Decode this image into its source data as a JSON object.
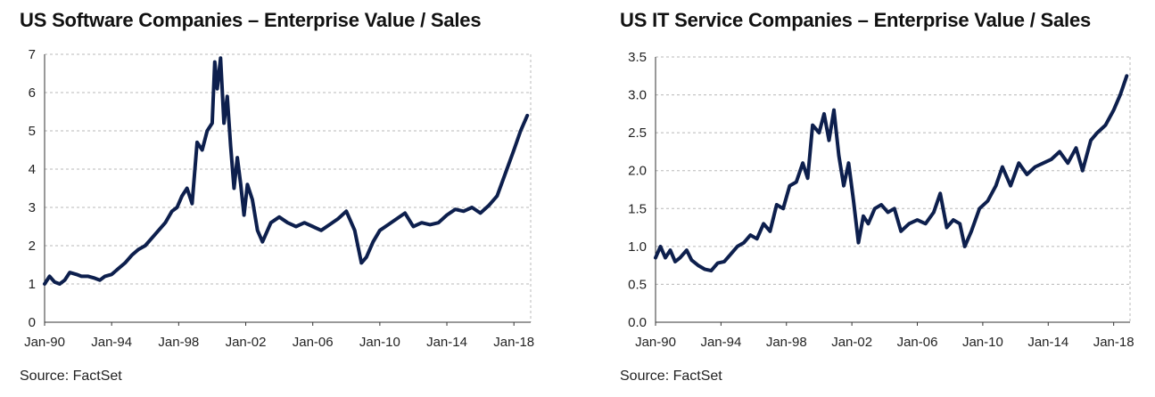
{
  "colors": {
    "line": "#0d1f4d",
    "grid": "#b8b8b8",
    "axis": "#333333"
  },
  "chart_data": [
    {
      "type": "line",
      "title": "US Software Companies – Enterprise Value / Sales",
      "source": "Source: FactSet",
      "xlabel": "",
      "ylabel": "",
      "x_ticks": [
        "Jan-90",
        "Jan-94",
        "Jan-98",
        "Jan-02",
        "Jan-06",
        "Jan-10",
        "Jan-14",
        "Jan-18"
      ],
      "y_ticks": [
        "0",
        "1",
        "2",
        "3",
        "4",
        "5",
        "6",
        "7"
      ],
      "xlim": [
        1990.0,
        2019.0
      ],
      "ylim": [
        0,
        7
      ],
      "grid": true,
      "series": [
        {
          "x": [
            1990.0,
            1990.3,
            1990.6,
            1990.9,
            1991.2,
            1991.5,
            1991.9,
            1992.2,
            1992.6,
            1993.0,
            1993.3,
            1993.6,
            1994.0,
            1994.4,
            1994.8,
            1995.2,
            1995.6,
            1996.0,
            1996.4,
            1996.8,
            1997.2,
            1997.6,
            1997.9,
            1998.2,
            1998.5,
            1998.8,
            1999.1,
            1999.4,
            1999.7,
            2000.0,
            2000.15,
            2000.3,
            2000.5,
            2000.7,
            2000.9,
            2001.1,
            2001.3,
            2001.5,
            2001.7,
            2001.9,
            2002.1,
            2002.4,
            2002.7,
            2003.0,
            2003.5,
            2004.0,
            2004.5,
            2005.0,
            2005.5,
            2006.0,
            2006.5,
            2007.0,
            2007.5,
            2008.0,
            2008.5,
            2008.9,
            2009.2,
            2009.6,
            2010.0,
            2010.5,
            2011.0,
            2011.5,
            2012.0,
            2012.5,
            2013.0,
            2013.5,
            2014.0,
            2014.5,
            2015.0,
            2015.5,
            2016.0,
            2016.5,
            2017.0,
            2017.5,
            2018.0,
            2018.4,
            2018.8
          ],
          "values": [
            1.0,
            1.2,
            1.05,
            1.0,
            1.1,
            1.3,
            1.25,
            1.2,
            1.2,
            1.15,
            1.1,
            1.2,
            1.25,
            1.4,
            1.55,
            1.75,
            1.9,
            2.0,
            2.2,
            2.4,
            2.6,
            2.9,
            3.0,
            3.3,
            3.5,
            3.1,
            4.7,
            4.5,
            5.0,
            5.2,
            6.8,
            6.1,
            6.9,
            5.2,
            5.9,
            4.6,
            3.5,
            4.3,
            3.6,
            2.8,
            3.6,
            3.2,
            2.4,
            2.1,
            2.6,
            2.75,
            2.6,
            2.5,
            2.6,
            2.5,
            2.4,
            2.55,
            2.7,
            2.9,
            2.4,
            1.55,
            1.7,
            2.1,
            2.4,
            2.55,
            2.7,
            2.85,
            2.5,
            2.6,
            2.55,
            2.6,
            2.8,
            2.95,
            2.9,
            3.0,
            2.85,
            3.05,
            3.3,
            3.9,
            4.5,
            5.0,
            5.4
          ]
        }
      ]
    },
    {
      "type": "line",
      "title": "US IT Service Companies – Enterprise Value / Sales",
      "source": "Source: FactSet",
      "xlabel": "",
      "ylabel": "",
      "x_ticks": [
        "Jan-90",
        "Jan-94",
        "Jan-98",
        "Jan-02",
        "Jan-06",
        "Jan-10",
        "Jan-14",
        "Jan-18"
      ],
      "y_ticks": [
        "0.0",
        "0.5",
        "1.0",
        "1.5",
        "2.0",
        "2.5",
        "3.0",
        "3.5"
      ],
      "xlim": [
        1990.0,
        2019.0
      ],
      "ylim": [
        0,
        3.5
      ],
      "grid": true,
      "series": [
        {
          "x": [
            1990.0,
            1990.3,
            1990.6,
            1990.9,
            1991.2,
            1991.5,
            1991.9,
            1992.2,
            1992.6,
            1993.0,
            1993.4,
            1993.8,
            1994.2,
            1994.6,
            1995.0,
            1995.4,
            1995.8,
            1996.2,
            1996.6,
            1997.0,
            1997.4,
            1997.8,
            1998.2,
            1998.6,
            1999.0,
            1999.3,
            1999.6,
            2000.0,
            2000.3,
            2000.6,
            2000.9,
            2001.2,
            2001.5,
            2001.8,
            2002.1,
            2002.4,
            2002.7,
            2003.0,
            2003.4,
            2003.8,
            2004.2,
            2004.6,
            2005.0,
            2005.5,
            2006.0,
            2006.5,
            2007.0,
            2007.4,
            2007.8,
            2008.2,
            2008.6,
            2008.9,
            2009.3,
            2009.8,
            2010.3,
            2010.8,
            2011.2,
            2011.7,
            2012.2,
            2012.7,
            2013.2,
            2013.7,
            2014.2,
            2014.7,
            2015.2,
            2015.7,
            2016.1,
            2016.6,
            2017.0,
            2017.5,
            2018.0,
            2018.4,
            2018.8
          ],
          "values": [
            0.85,
            1.0,
            0.85,
            0.95,
            0.8,
            0.85,
            0.95,
            0.82,
            0.75,
            0.7,
            0.68,
            0.78,
            0.8,
            0.9,
            1.0,
            1.05,
            1.15,
            1.1,
            1.3,
            1.2,
            1.55,
            1.5,
            1.8,
            1.85,
            2.1,
            1.9,
            2.6,
            2.5,
            2.75,
            2.4,
            2.8,
            2.2,
            1.8,
            2.1,
            1.6,
            1.05,
            1.4,
            1.3,
            1.5,
            1.55,
            1.45,
            1.5,
            1.2,
            1.3,
            1.35,
            1.3,
            1.45,
            1.7,
            1.25,
            1.35,
            1.3,
            1.0,
            1.2,
            1.5,
            1.6,
            1.8,
            2.05,
            1.8,
            2.1,
            1.95,
            2.05,
            2.1,
            2.15,
            2.25,
            2.1,
            2.3,
            2.0,
            2.4,
            2.5,
            2.6,
            2.8,
            3.0,
            3.25
          ]
        }
      ]
    }
  ]
}
